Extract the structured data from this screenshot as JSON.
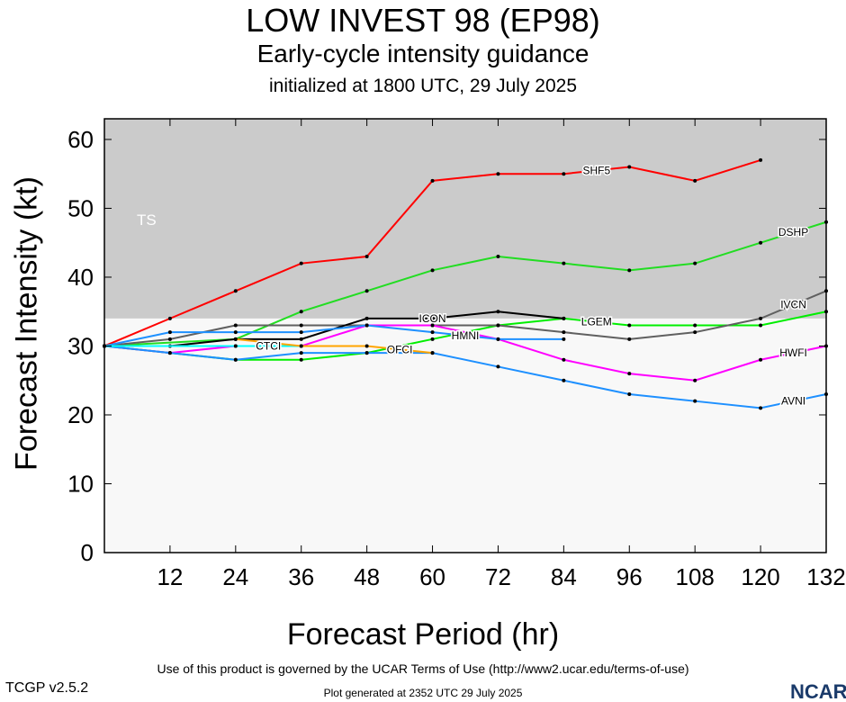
{
  "chart_data": {
    "type": "line",
    "title": "LOW INVEST 98 (EP98)",
    "subtitle": "Early-cycle intensity guidance",
    "subtitle2": "initialized at 1800 UTC, 29 July 2025",
    "xlabel": "Forecast Period (hr)",
    "ylabel": "Forecast Intensity (kt)",
    "xlim": [
      0,
      132
    ],
    "ylim": [
      0,
      63
    ],
    "xticks": [
      12,
      24,
      36,
      48,
      60,
      72,
      84,
      96,
      108,
      120,
      132
    ],
    "yticks": [
      0,
      10,
      20,
      30,
      40,
      50,
      60
    ],
    "band_label": "TS",
    "band_threshold": 34,
    "colors": {
      "band": "#cbcbcb",
      "below": "#f8f8f8"
    },
    "series": [
      {
        "name": "SHF5",
        "color": "#ff0000",
        "x": [
          0,
          12,
          24,
          36,
          48,
          60,
          72,
          84,
          96,
          108,
          120
        ],
        "y": [
          30,
          34,
          38,
          42,
          43,
          54,
          55,
          55,
          56,
          54,
          57
        ]
      },
      {
        "name": "DSHP",
        "color": "#22dd22",
        "x": [
          0,
          24,
          36,
          48,
          60,
          72,
          84,
          96,
          108,
          120,
          132
        ],
        "y": [
          30,
          31,
          35,
          38,
          41,
          43,
          42,
          41,
          42,
          45,
          48
        ]
      },
      {
        "name": "LGEM",
        "color": "#00ee00",
        "x": [
          0,
          12,
          24,
          36,
          48,
          60,
          72,
          84,
          96,
          108,
          120,
          132
        ],
        "y": [
          30,
          29,
          28,
          28,
          29,
          31,
          33,
          34,
          33,
          33,
          33,
          35
        ]
      },
      {
        "name": "IVCN",
        "color": "#606060",
        "x": [
          0,
          12,
          24,
          36,
          48,
          60,
          72,
          84,
          96,
          108,
          120,
          132
        ],
        "y": [
          30,
          31,
          33,
          33,
          33,
          33,
          33,
          32,
          31,
          32,
          34,
          38
        ]
      },
      {
        "name": "ICON",
        "color": "#000000",
        "x": [
          0,
          12,
          24,
          36,
          48,
          60,
          72,
          84
        ],
        "y": [
          30,
          30,
          31,
          31,
          34,
          34,
          35,
          34
        ]
      },
      {
        "name": "HWFI",
        "color": "#ff00ff",
        "x": [
          0,
          12,
          24,
          36,
          48,
          60,
          72,
          84,
          96,
          108,
          120,
          132
        ],
        "y": [
          30,
          29,
          30,
          30,
          33,
          33,
          31,
          28,
          26,
          25,
          28,
          30
        ]
      },
      {
        "name": "AVNI",
        "color": "#1e90ff",
        "x": [
          0,
          12,
          24,
          36,
          48,
          60,
          72,
          84,
          96,
          108,
          120,
          132
        ],
        "y": [
          30,
          29,
          28,
          29,
          29,
          29,
          27,
          25,
          23,
          22,
          21,
          23
        ]
      },
      {
        "name": "HMNI",
        "color": "#1e90ff",
        "x": [
          0,
          12,
          24,
          36,
          48,
          60,
          72,
          84
        ],
        "y": [
          30,
          32,
          32,
          32,
          33,
          32,
          31,
          31
        ]
      },
      {
        "name": "CTCI",
        "color": "#00ffff",
        "x": [
          0,
          24,
          36
        ],
        "y": [
          30,
          30,
          30
        ]
      },
      {
        "name": "OFCI",
        "color": "#ffa500",
        "x": [
          24,
          36,
          48,
          60
        ],
        "y": [
          31,
          30,
          30,
          29
        ]
      }
    ]
  },
  "footer": {
    "version": "TCGP v2.5.2",
    "terms": "Use of this product is governed by the UCAR Terms of Use (http://www2.ucar.edu/terms-of-use)",
    "generated": "Plot generated at 2352 UTC   29 July 2025",
    "logo": "NCAR"
  }
}
